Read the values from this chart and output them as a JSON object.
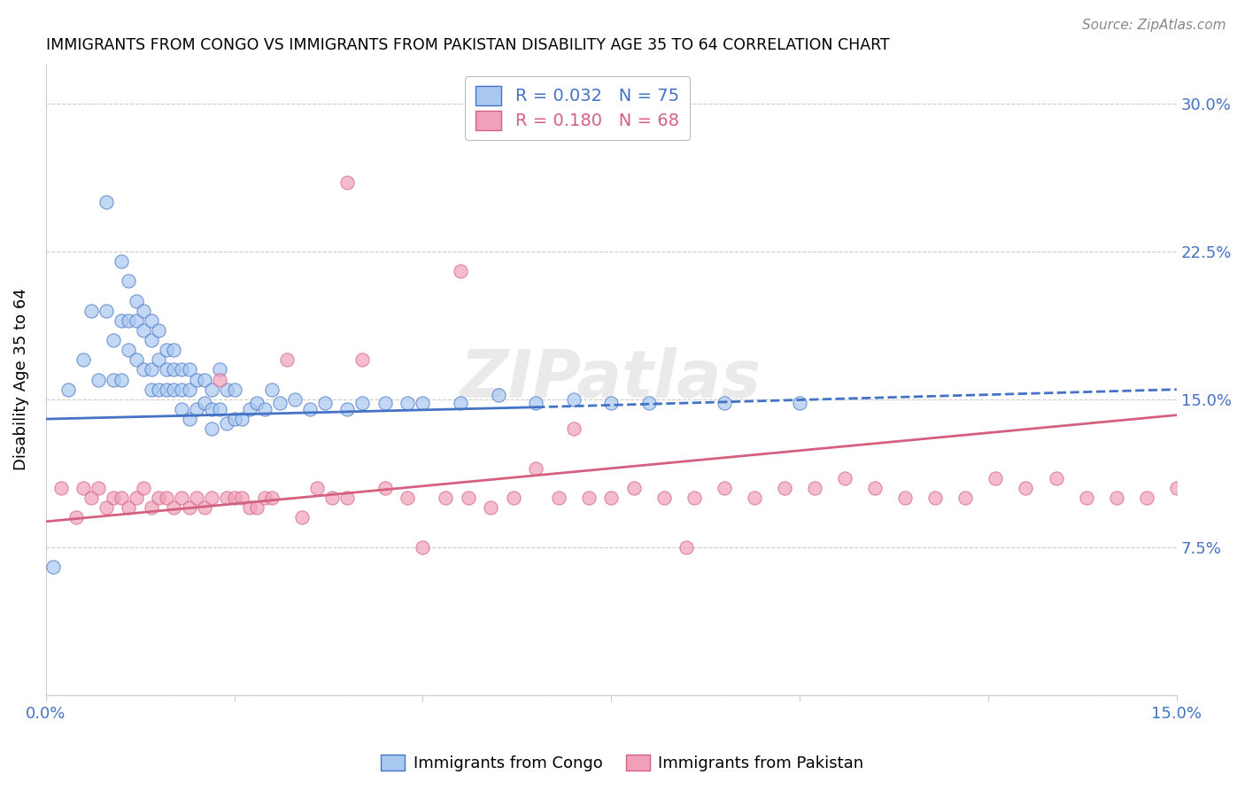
{
  "title": "IMMIGRANTS FROM CONGO VS IMMIGRANTS FROM PAKISTAN DISABILITY AGE 35 TO 64 CORRELATION CHART",
  "source": "Source: ZipAtlas.com",
  "ylabel": "Disability Age 35 to 64",
  "xlim": [
    0.0,
    0.15
  ],
  "ylim": [
    0.0,
    0.32
  ],
  "xticks": [
    0.0,
    0.025,
    0.05,
    0.075,
    0.1,
    0.125,
    0.15
  ],
  "yticks": [
    0.0,
    0.075,
    0.15,
    0.225,
    0.3
  ],
  "ytick_labels": [
    "",
    "7.5%",
    "15.0%",
    "22.5%",
    "30.0%"
  ],
  "r_congo": 0.032,
  "n_congo": 75,
  "r_pakistan": 0.18,
  "n_pakistan": 68,
  "color_congo": "#A8C8F0",
  "color_pakistan": "#F0A0B8",
  "color_congo_line": "#4472C4",
  "color_pakistan_line": "#D46080",
  "legend_label_congo": "Immigrants from Congo",
  "legend_label_pakistan": "Immigrants from Pakistan",
  "congo_x": [
    0.001,
    0.003,
    0.005,
    0.006,
    0.007,
    0.008,
    0.008,
    0.009,
    0.009,
    0.01,
    0.01,
    0.01,
    0.011,
    0.011,
    0.011,
    0.012,
    0.012,
    0.012,
    0.013,
    0.013,
    0.013,
    0.014,
    0.014,
    0.014,
    0.014,
    0.015,
    0.015,
    0.015,
    0.016,
    0.016,
    0.016,
    0.017,
    0.017,
    0.017,
    0.018,
    0.018,
    0.018,
    0.019,
    0.019,
    0.019,
    0.02,
    0.02,
    0.021,
    0.021,
    0.022,
    0.022,
    0.022,
    0.023,
    0.023,
    0.024,
    0.024,
    0.025,
    0.025,
    0.026,
    0.027,
    0.028,
    0.029,
    0.03,
    0.031,
    0.033,
    0.035,
    0.037,
    0.04,
    0.042,
    0.045,
    0.048,
    0.05,
    0.055,
    0.06,
    0.065,
    0.07,
    0.075,
    0.08,
    0.09,
    0.1
  ],
  "congo_y": [
    0.065,
    0.155,
    0.17,
    0.195,
    0.16,
    0.25,
    0.195,
    0.18,
    0.16,
    0.22,
    0.19,
    0.16,
    0.21,
    0.19,
    0.175,
    0.2,
    0.19,
    0.17,
    0.195,
    0.185,
    0.165,
    0.19,
    0.18,
    0.165,
    0.155,
    0.185,
    0.17,
    0.155,
    0.175,
    0.165,
    0.155,
    0.175,
    0.165,
    0.155,
    0.165,
    0.155,
    0.145,
    0.165,
    0.155,
    0.14,
    0.16,
    0.145,
    0.16,
    0.148,
    0.155,
    0.145,
    0.135,
    0.165,
    0.145,
    0.155,
    0.138,
    0.155,
    0.14,
    0.14,
    0.145,
    0.148,
    0.145,
    0.155,
    0.148,
    0.15,
    0.145,
    0.148,
    0.145,
    0.148,
    0.148,
    0.148,
    0.148,
    0.148,
    0.152,
    0.148,
    0.15,
    0.148,
    0.148,
    0.148,
    0.148
  ],
  "pakistan_x": [
    0.002,
    0.004,
    0.005,
    0.006,
    0.007,
    0.008,
    0.009,
    0.01,
    0.011,
    0.012,
    0.013,
    0.014,
    0.015,
    0.016,
    0.017,
    0.018,
    0.019,
    0.02,
    0.021,
    0.022,
    0.023,
    0.024,
    0.025,
    0.026,
    0.027,
    0.028,
    0.029,
    0.03,
    0.032,
    0.034,
    0.036,
    0.038,
    0.04,
    0.042,
    0.045,
    0.048,
    0.05,
    0.053,
    0.056,
    0.059,
    0.062,
    0.065,
    0.068,
    0.072,
    0.075,
    0.078,
    0.082,
    0.086,
    0.09,
    0.094,
    0.098,
    0.102,
    0.106,
    0.11,
    0.114,
    0.118,
    0.122,
    0.126,
    0.13,
    0.134,
    0.138,
    0.142,
    0.146,
    0.15,
    0.04,
    0.055,
    0.07,
    0.085
  ],
  "pakistan_y": [
    0.105,
    0.09,
    0.105,
    0.1,
    0.105,
    0.095,
    0.1,
    0.1,
    0.095,
    0.1,
    0.105,
    0.095,
    0.1,
    0.1,
    0.095,
    0.1,
    0.095,
    0.1,
    0.095,
    0.1,
    0.16,
    0.1,
    0.1,
    0.1,
    0.095,
    0.095,
    0.1,
    0.1,
    0.17,
    0.09,
    0.105,
    0.1,
    0.1,
    0.17,
    0.105,
    0.1,
    0.075,
    0.1,
    0.1,
    0.095,
    0.1,
    0.115,
    0.1,
    0.1,
    0.1,
    0.105,
    0.1,
    0.1,
    0.105,
    0.1,
    0.105,
    0.105,
    0.11,
    0.105,
    0.1,
    0.1,
    0.1,
    0.11,
    0.105,
    0.11,
    0.1,
    0.1,
    0.1,
    0.105,
    0.26,
    0.215,
    0.135,
    0.075
  ]
}
